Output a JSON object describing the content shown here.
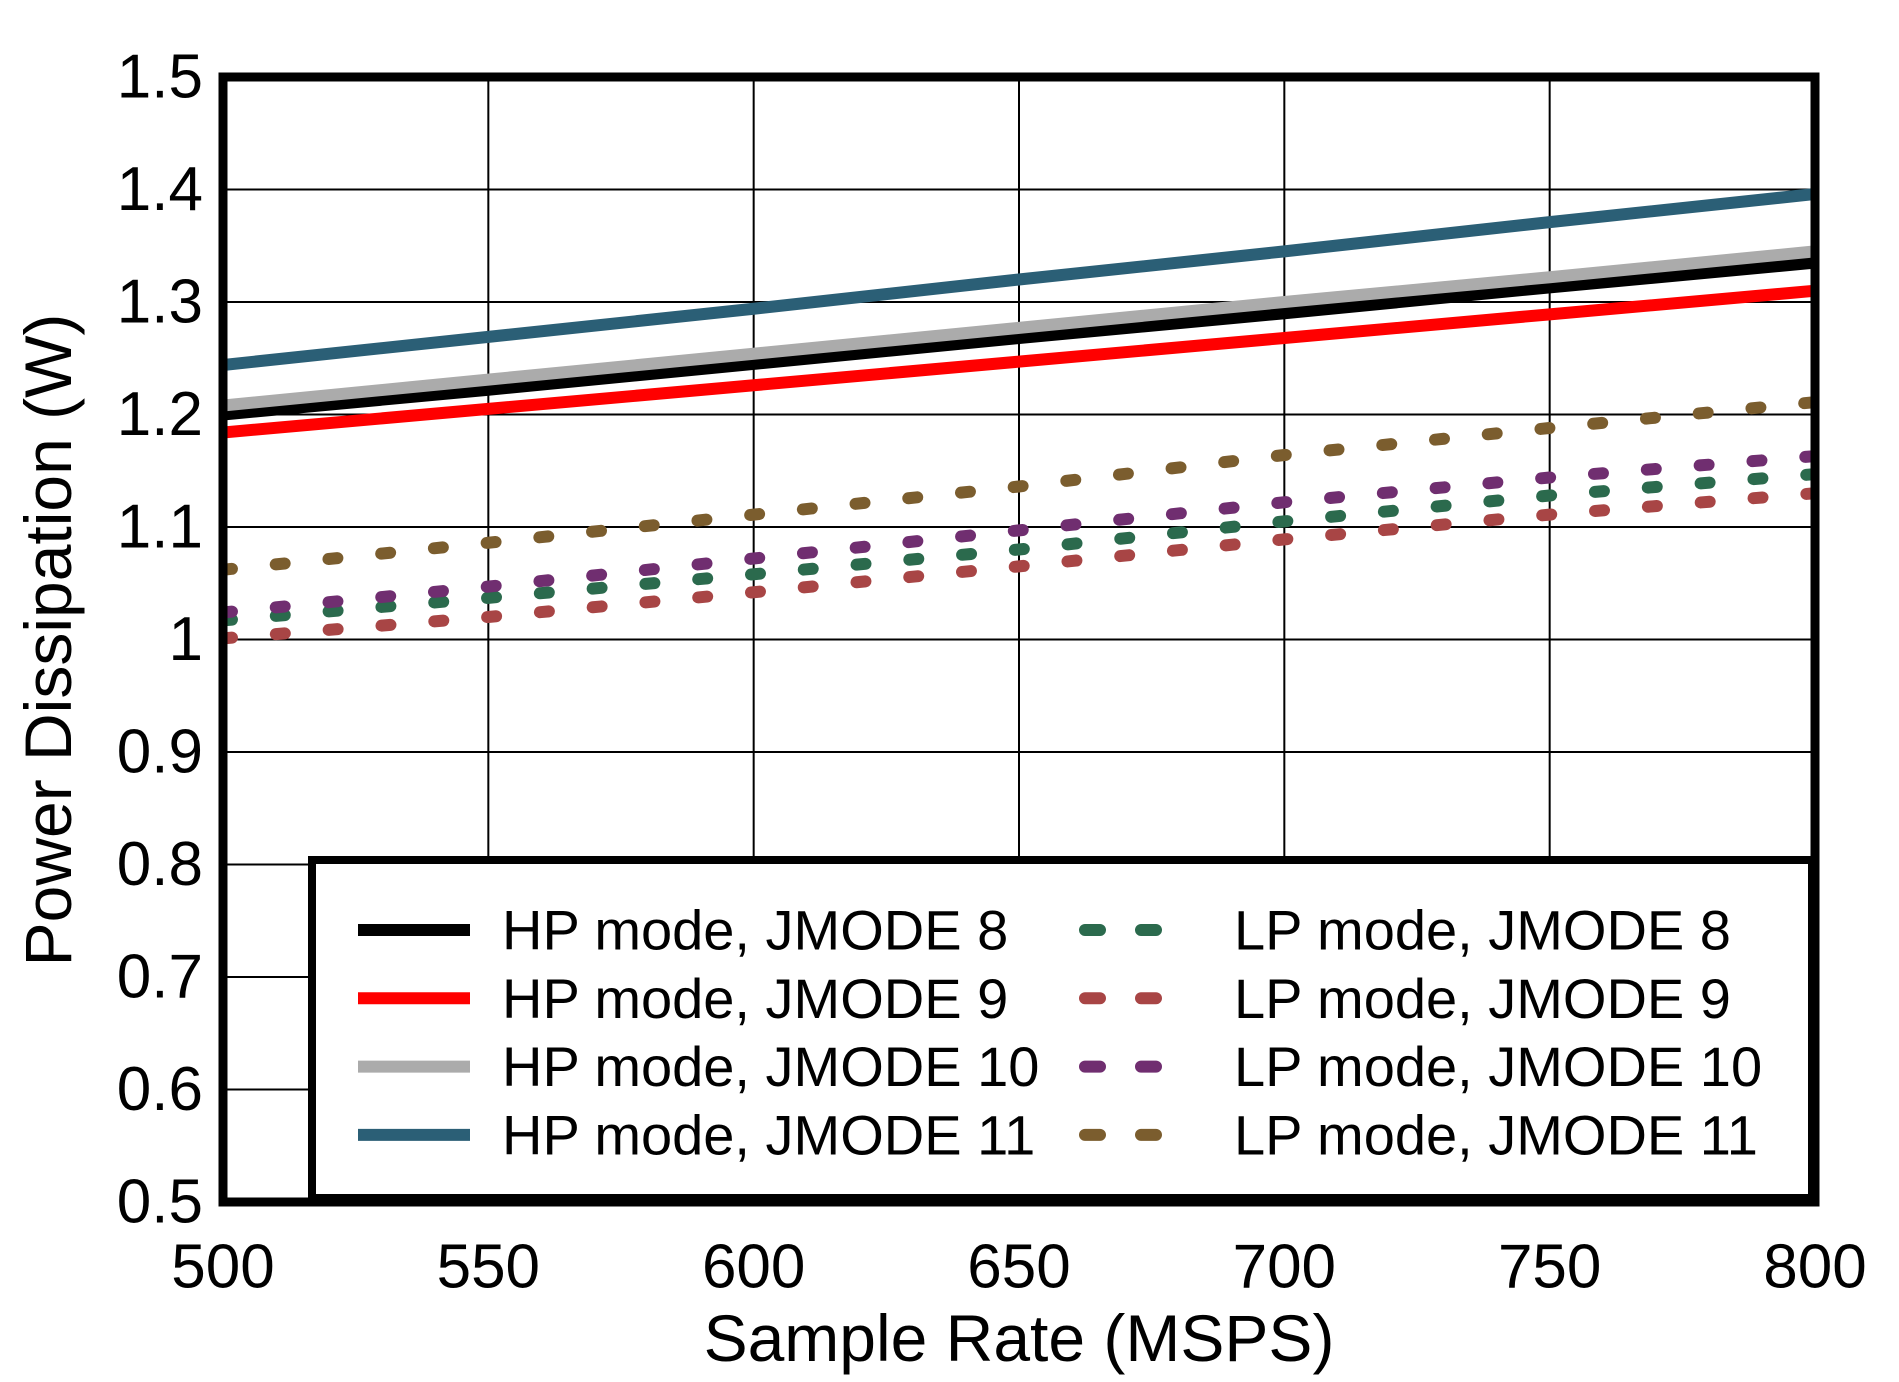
{
  "chart_data": {
    "type": "line",
    "title": "",
    "xlabel": "Sample Rate (MSPS)",
    "ylabel": "Power Dissipation (W)",
    "xlim": [
      500,
      800
    ],
    "ylim": [
      0.5,
      1.5
    ],
    "xticks": [
      500,
      550,
      600,
      650,
      700,
      750,
      800
    ],
    "yticks": [
      0.5,
      0.6,
      0.7,
      0.8,
      0.9,
      1.0,
      1.1,
      1.2,
      1.3,
      1.4,
      1.5
    ],
    "xtick_labels": [
      "500",
      "550",
      "600",
      "650",
      "700",
      "750",
      "800"
    ],
    "ytick_labels": [
      "0.5",
      "0.6",
      "0.7",
      "0.8",
      "0.9",
      "1",
      "1.1",
      "1.2",
      "1.3",
      "1.4",
      "1.5"
    ],
    "grid": true,
    "legend_position": "inside-bottom-left",
    "x": [
      500,
      550,
      600,
      650,
      700,
      750,
      800
    ],
    "series": [
      {
        "name": "HP mode, JMODE 8",
        "color": "#000000",
        "style": "solid",
        "values": [
          1.2,
          1.222,
          1.245,
          1.268,
          1.29,
          1.313,
          1.335
        ]
      },
      {
        "name": "HP mode, JMODE 9",
        "color": "#FF0000",
        "style": "solid",
        "values": [
          1.184,
          1.205,
          1.226,
          1.247,
          1.268,
          1.289,
          1.31
        ]
      },
      {
        "name": "HP mode, JMODE 10",
        "color": "#ABABAB",
        "style": "solid",
        "values": [
          1.208,
          1.231,
          1.254,
          1.277,
          1.3,
          1.322,
          1.345
        ]
      },
      {
        "name": "HP mode, JMODE 11",
        "color": "#2B5F76",
        "style": "solid",
        "values": [
          1.244,
          1.269,
          1.294,
          1.32,
          1.345,
          1.371,
          1.396
        ]
      },
      {
        "name": "LP mode, JMODE 8",
        "color": "#2B6A4D",
        "style": "dashed",
        "values": [
          1.017,
          1.037,
          1.058,
          1.08,
          1.105,
          1.128,
          1.147
        ]
      },
      {
        "name": "LP mode, JMODE 9",
        "color": "#A84545",
        "style": "dashed",
        "values": [
          1.001,
          1.02,
          1.042,
          1.065,
          1.089,
          1.111,
          1.13
        ]
      },
      {
        "name": "LP mode, JMODE 10",
        "color": "#702E70",
        "style": "dashed",
        "values": [
          1.024,
          1.047,
          1.072,
          1.097,
          1.122,
          1.144,
          1.163
        ]
      },
      {
        "name": "LP mode, JMODE 11",
        "color": "#7B5D2E",
        "style": "dashed",
        "values": [
          1.062,
          1.086,
          1.111,
          1.136,
          1.164,
          1.188,
          1.211
        ]
      }
    ],
    "colors": {
      "background": "#FFFFFF",
      "frame": "#000000",
      "grid": "#000000",
      "text": "#000000",
      "legend_background": "#FFFFFF",
      "legend_border": "#000000"
    }
  }
}
